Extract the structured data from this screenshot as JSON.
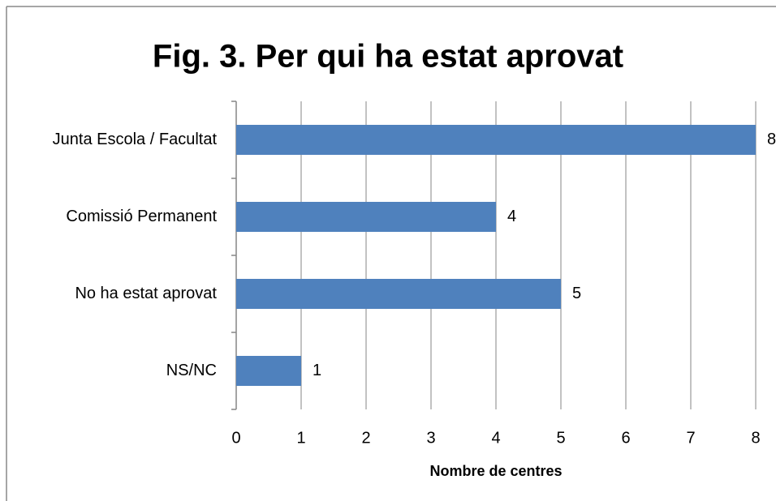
{
  "chart_data": {
    "type": "bar",
    "orientation": "horizontal",
    "title": "Fig. 3. Per qui ha estat aprovat",
    "categories": [
      "Junta Escola / Facultat",
      "Comissió Permanent",
      "No ha estat aprovat",
      "NS/NC"
    ],
    "values": [
      8,
      4,
      5,
      1
    ],
    "color": "#4f81bd",
    "xlabel": "Nombre de centres",
    "xlim": [
      0,
      8
    ],
    "xticks": [
      0,
      1,
      2,
      3,
      4,
      5,
      6,
      7,
      8
    ],
    "grid": true
  }
}
